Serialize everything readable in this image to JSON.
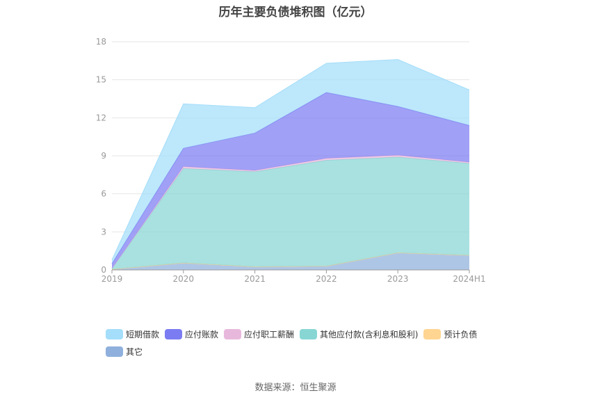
{
  "chart_data": {
    "type": "area",
    "stacked": true,
    "title": "历年主要负债堆积图（亿元）",
    "categories": [
      "2019",
      "2020",
      "2021",
      "2022",
      "2023",
      "2024H1"
    ],
    "ylim": [
      0,
      18
    ],
    "yticks": [
      "0",
      "3",
      "6",
      "9",
      "12",
      "15",
      "18"
    ],
    "grid": true,
    "legend_position": "bottom",
    "series": [
      {
        "name": "其它",
        "color": "#8fb0dd",
        "values": [
          0.05,
          0.55,
          0.25,
          0.3,
          1.35,
          1.15
        ]
      },
      {
        "name": "预计负债",
        "color": "#ffd591",
        "values": [
          0,
          0,
          0,
          0,
          0,
          0
        ]
      },
      {
        "name": "其他应付款(含利息和股利)",
        "color": "#87d6d4",
        "values": [
          0.05,
          7.45,
          7.5,
          8.35,
          7.55,
          7.25
        ]
      },
      {
        "name": "应付职工薪酬",
        "color": "#e8b8dc",
        "values": [
          0.02,
          0.15,
          0.1,
          0.15,
          0.15,
          0.1
        ]
      },
      {
        "name": "应付账款",
        "color": "#7b7cf2",
        "values": [
          0.38,
          1.45,
          2.95,
          5.2,
          3.85,
          2.9
        ]
      },
      {
        "name": "短期借款",
        "color": "#a4defa",
        "values": [
          0.3,
          3.5,
          2.0,
          2.3,
          3.7,
          2.8
        ]
      }
    ],
    "legend_order": [
      "短期借款",
      "应付账款",
      "应付职工薪酬",
      "其他应付款(含利息和股利)",
      "预计负债",
      "其它"
    ]
  },
  "footer": {
    "source": "数据来源：恒生聚源"
  }
}
